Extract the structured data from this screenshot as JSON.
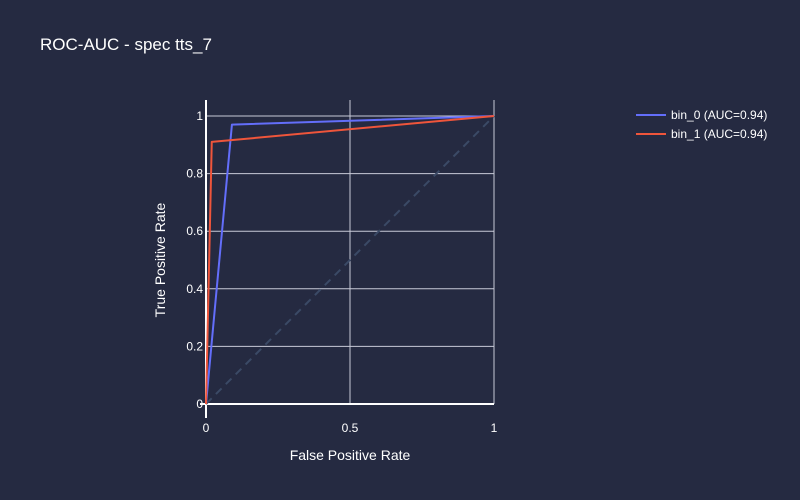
{
  "chart_data": {
    "type": "line",
    "title": "ROC-AUC - spec tts_7",
    "xlabel": "False Positive Rate",
    "ylabel": "True Positive Rate",
    "xlim": [
      0,
      1
    ],
    "ylim": [
      0,
      1
    ],
    "x_ticks": [
      "0",
      "0.5",
      "1"
    ],
    "y_ticks": [
      "0",
      "0.2",
      "0.4",
      "0.6",
      "0.8",
      "1"
    ],
    "grid": true,
    "legend_position": "top-right",
    "series": [
      {
        "name": "bin_0 (AUC=0.94)",
        "color": "#636efa",
        "x": [
          0,
          0.09,
          1
        ],
        "y": [
          0,
          0.97,
          1
        ]
      },
      {
        "name": "bin_1 (AUC=0.94)",
        "color": "#ef553b",
        "x": [
          0,
          0.02,
          1
        ],
        "y": [
          0,
          0.91,
          1
        ]
      }
    ],
    "diagonal": {
      "color": "#3b4a66",
      "x": [
        0,
        1
      ],
      "y": [
        0,
        1
      ]
    }
  }
}
